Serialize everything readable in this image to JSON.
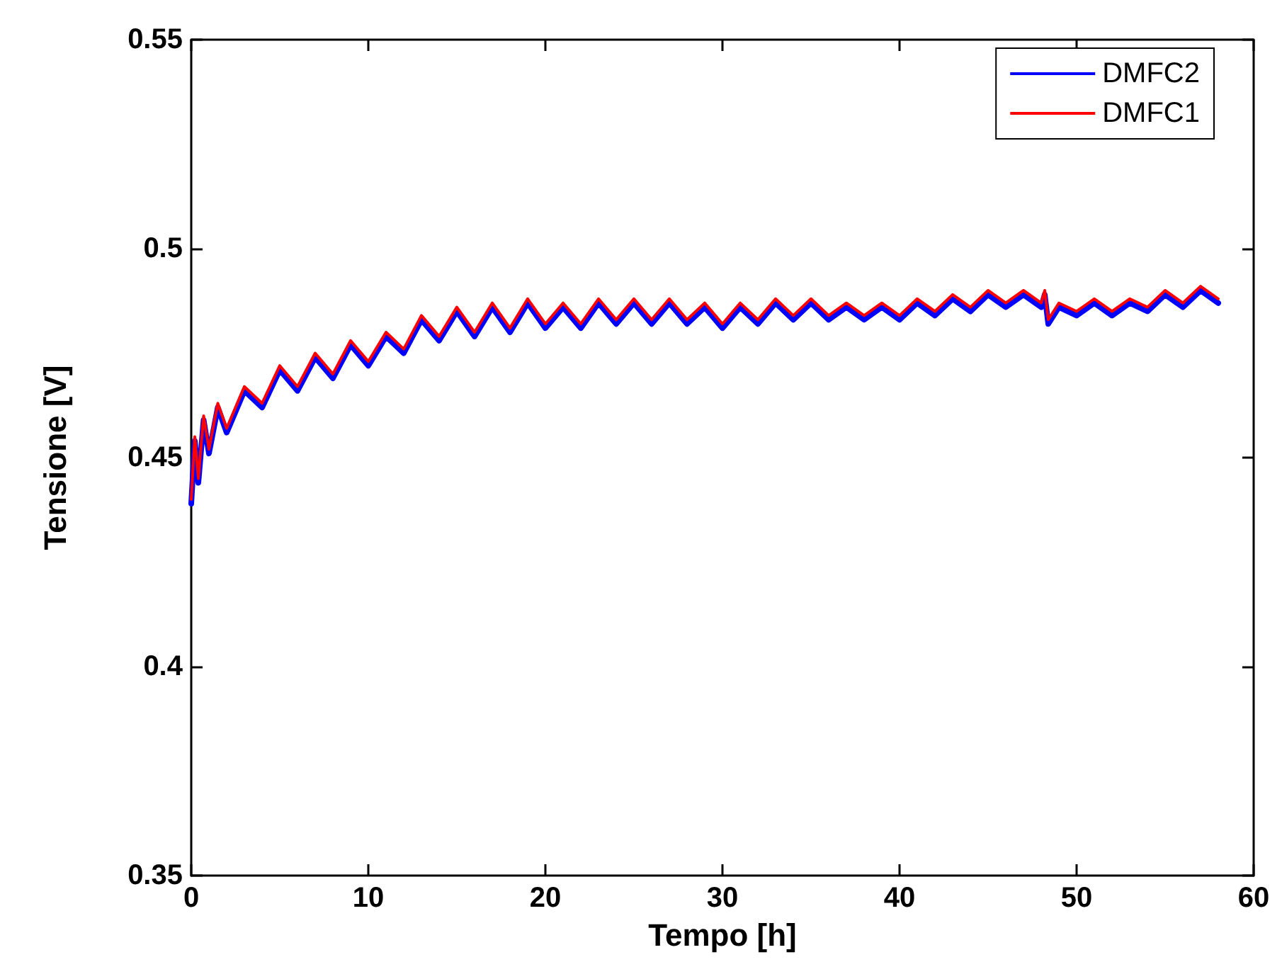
{
  "chart_data": {
    "type": "line",
    "xlabel": "Tempo [h]",
    "ylabel": "Tensione [V]",
    "xlim": [
      0,
      60
    ],
    "xticks": [
      0,
      10,
      20,
      30,
      40,
      50,
      60
    ],
    "ylim": [
      0.35,
      0.55
    ],
    "yticks": [
      0.35,
      0.4,
      0.45,
      0.5,
      0.55
    ],
    "grid": false,
    "legend": "top right",
    "marker": "none",
    "line_style": "solid",
    "x": [
      0,
      0.2,
      0.4,
      0.7,
      1,
      1.5,
      2,
      3,
      4,
      5,
      6,
      7,
      8,
      9,
      10,
      11,
      12,
      13,
      14,
      15,
      16,
      17,
      18,
      19,
      20,
      21,
      22,
      23,
      24,
      25,
      26,
      27,
      28,
      29,
      30,
      31,
      32,
      33,
      34,
      35,
      36,
      37,
      38,
      39,
      40,
      41,
      42,
      43,
      44,
      45,
      46,
      47,
      48,
      48.2,
      48.4,
      49,
      50,
      51,
      52,
      53,
      54,
      55,
      56,
      57,
      58
    ],
    "series": [
      {
        "name": "DMFC2",
        "color": "#0000ff",
        "values": [
          0.439,
          0.454,
          0.444,
          0.459,
          0.451,
          0.462,
          0.456,
          0.466,
          0.462,
          0.471,
          0.466,
          0.474,
          0.469,
          0.477,
          0.472,
          0.479,
          0.475,
          0.483,
          0.478,
          0.485,
          0.479,
          0.486,
          0.48,
          0.487,
          0.481,
          0.486,
          0.481,
          0.487,
          0.482,
          0.487,
          0.482,
          0.487,
          0.482,
          0.486,
          0.481,
          0.486,
          0.482,
          0.487,
          0.483,
          0.487,
          0.483,
          0.486,
          0.483,
          0.486,
          0.483,
          0.487,
          0.484,
          0.488,
          0.485,
          0.489,
          0.486,
          0.489,
          0.486,
          0.489,
          0.482,
          0.486,
          0.484,
          0.487,
          0.484,
          0.487,
          0.485,
          0.489,
          0.486,
          0.49,
          0.487
        ]
      },
      {
        "name": "DMFC1",
        "color": "#ff0000",
        "values": [
          0.44,
          0.455,
          0.445,
          0.46,
          0.452,
          0.463,
          0.457,
          0.467,
          0.463,
          0.472,
          0.467,
          0.475,
          0.47,
          0.478,
          0.473,
          0.48,
          0.476,
          0.484,
          0.479,
          0.486,
          0.48,
          0.487,
          0.481,
          0.488,
          0.482,
          0.487,
          0.482,
          0.488,
          0.483,
          0.488,
          0.483,
          0.488,
          0.483,
          0.487,
          0.482,
          0.487,
          0.483,
          0.488,
          0.484,
          0.488,
          0.484,
          0.487,
          0.484,
          0.487,
          0.484,
          0.488,
          0.485,
          0.489,
          0.486,
          0.49,
          0.487,
          0.49,
          0.487,
          0.49,
          0.483,
          0.487,
          0.485,
          0.488,
          0.485,
          0.488,
          0.486,
          0.49,
          0.487,
          0.491,
          0.488
        ]
      }
    ]
  }
}
